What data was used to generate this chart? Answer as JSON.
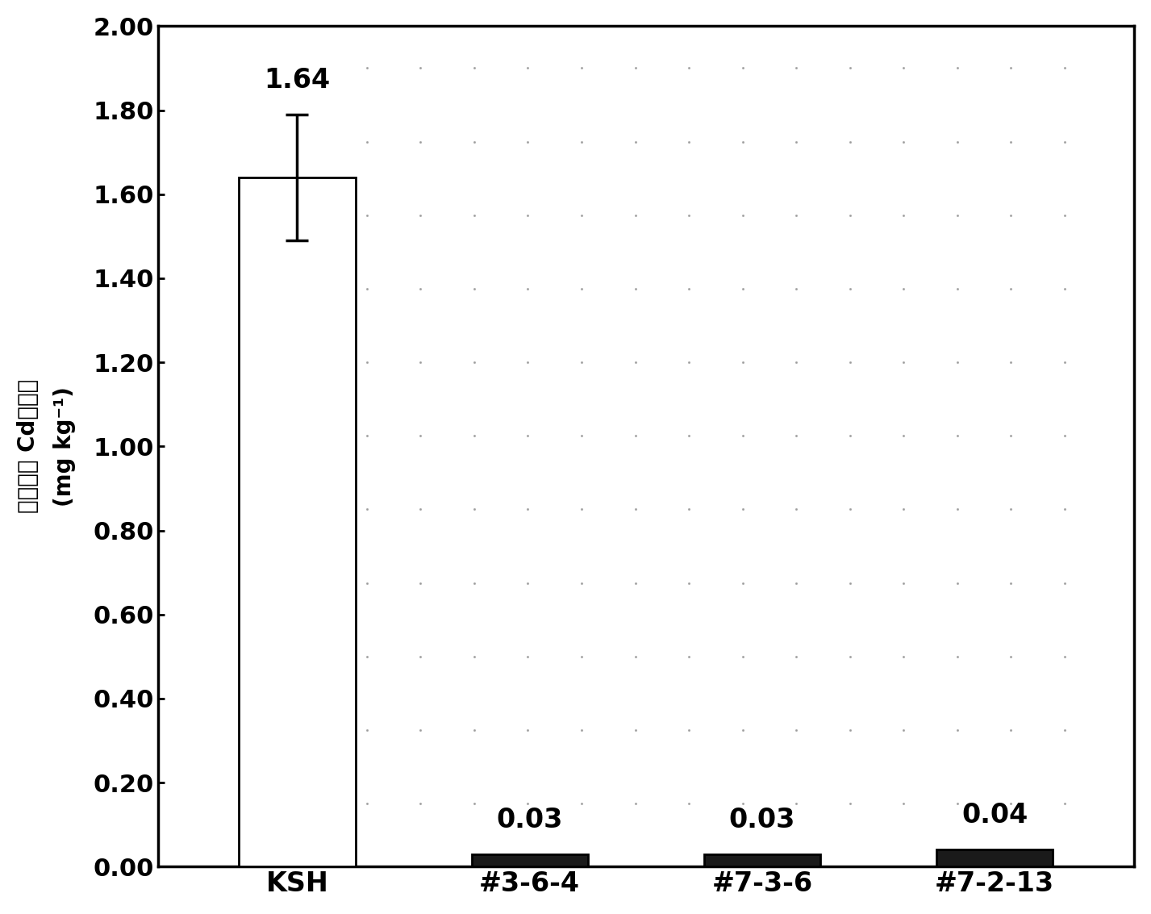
{
  "categories": [
    "KSH",
    "#3-6-4",
    "#7-3-6",
    "#7-2-13"
  ],
  "values": [
    1.64,
    0.03,
    0.03,
    0.04
  ],
  "errors": [
    0.15,
    0.0,
    0.0,
    0.0
  ],
  "bar_colors": [
    "#ffffff",
    "#1a1a1a",
    "#1a1a1a",
    "#1a1a1a"
  ],
  "bar_edgecolors": [
    "#000000",
    "#000000",
    "#000000",
    "#000000"
  ],
  "value_labels": [
    "1.64",
    "0.03",
    "0.03",
    "0.04"
  ],
  "ylabel_chinese": "精米中的 Cd镞浓度",
  "ylabel_units": "(mg kg⁻¹)",
  "ylim": [
    0.0,
    2.0
  ],
  "yticks": [
    0.0,
    0.2,
    0.4,
    0.6,
    0.8,
    1.0,
    1.2,
    1.4,
    1.6,
    1.8,
    2.0
  ],
  "background_color": "#ffffff",
  "bar_width": 0.5,
  "figsize": [
    14.27,
    11.33
  ],
  "dpi": 100
}
